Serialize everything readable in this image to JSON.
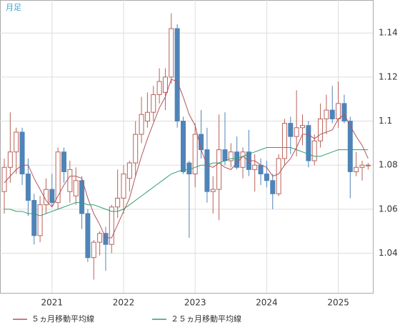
{
  "chart_data": {
    "type": "candlestick",
    "title": "月足",
    "categories": [
      null,
      null,
      null,
      null,
      null,
      null,
      null,
      null,
      "2021",
      null,
      null,
      null,
      null,
      null,
      null,
      null,
      null,
      null,
      null,
      null,
      "2022",
      null,
      null,
      null,
      null,
      null,
      null,
      null,
      null,
      null,
      null,
      null,
      "2023",
      null,
      null,
      null,
      null,
      null,
      null,
      null,
      null,
      null,
      null,
      null,
      "2024",
      null,
      null,
      null,
      null,
      null,
      null,
      null,
      null,
      null,
      null,
      null,
      "2025",
      null,
      null,
      null,
      null,
      null
    ],
    "ohlc": {
      "open": [
        1.068,
        1.079,
        1.086,
        1.095,
        1.076,
        1.064,
        1.048,
        1.062,
        1.069,
        1.063,
        1.086,
        1.068,
        1.066,
        1.073,
        1.058,
        1.038,
        1.045,
        1.049,
        1.044,
        1.061,
        1.065,
        1.074,
        1.081,
        1.094,
        1.1,
        1.104,
        1.112,
        1.113,
        1.12,
        1.142,
        1.1,
        1.081,
        1.076,
        1.094,
        1.087,
        1.068,
        1.069,
        1.087,
        1.082,
        1.086,
        1.079,
        1.086,
        1.078,
        1.08,
        1.076,
        1.073,
        1.067,
        1.083,
        1.099,
        1.093,
        1.097,
        1.098,
        1.082,
        1.091,
        1.101,
        1.105,
        1.101,
        1.108,
        1.1,
        1.077,
        1.079,
        1.08
      ],
      "high": [
        1.083,
        1.104,
        1.097,
        1.097,
        1.083,
        1.067,
        1.066,
        1.074,
        1.076,
        1.088,
        1.088,
        1.082,
        1.079,
        1.075,
        1.06,
        1.046,
        1.05,
        1.052,
        1.062,
        1.078,
        1.08,
        1.082,
        1.1,
        1.111,
        1.113,
        1.116,
        1.124,
        1.124,
        1.149,
        1.144,
        1.102,
        1.082,
        1.099,
        1.105,
        1.097,
        1.075,
        1.103,
        1.104,
        1.09,
        1.093,
        1.088,
        1.096,
        1.085,
        1.083,
        1.082,
        1.076,
        1.085,
        1.101,
        1.102,
        1.114,
        1.103,
        1.1,
        1.094,
        1.108,
        1.112,
        1.116,
        1.118,
        1.112,
        1.102,
        1.086,
        1.082,
        1.081
      ],
      "low": [
        1.058,
        1.072,
        1.076,
        1.071,
        1.057,
        1.044,
        1.045,
        1.058,
        1.061,
        1.06,
        1.072,
        1.063,
        1.062,
        1.051,
        1.036,
        1.028,
        1.039,
        1.032,
        1.04,
        1.056,
        1.058,
        1.068,
        1.075,
        1.09,
        1.097,
        1.1,
        1.108,
        1.105,
        1.117,
        1.097,
        1.076,
        1.047,
        1.07,
        1.083,
        1.063,
        1.058,
        1.055,
        1.08,
        1.079,
        1.078,
        1.074,
        1.075,
        1.068,
        1.071,
        1.07,
        1.06,
        1.066,
        1.08,
        1.085,
        1.084,
        1.089,
        1.079,
        1.08,
        1.088,
        1.094,
        1.099,
        1.097,
        1.099,
        1.065,
        1.075,
        1.073,
        1.078
      ],
      "close": [
        1.079,
        1.086,
        1.095,
        1.076,
        1.064,
        1.048,
        1.062,
        1.069,
        1.063,
        1.086,
        1.077,
        1.078,
        1.073,
        1.058,
        1.038,
        1.045,
        1.049,
        1.044,
        1.061,
        1.065,
        1.076,
        1.081,
        1.094,
        1.103,
        1.104,
        1.112,
        1.118,
        1.12,
        1.142,
        1.1,
        1.077,
        1.076,
        1.094,
        1.087,
        1.068,
        1.069,
        1.087,
        1.082,
        1.086,
        1.079,
        1.086,
        1.078,
        1.08,
        1.076,
        1.073,
        1.067,
        1.083,
        1.099,
        1.093,
        1.097,
        1.098,
        1.082,
        1.091,
        1.101,
        1.105,
        1.101,
        1.108,
        1.1,
        1.077,
        1.079,
        1.08,
        1.08
      ]
    },
    "up_color": "#b8625a",
    "down_color": "#4f84b8",
    "series": [
      {
        "name": "５ヵ月移動平均線",
        "color": "#b5535a",
        "values": [
          1.072,
          1.075,
          1.078,
          1.08,
          1.08,
          1.074,
          1.069,
          1.064,
          1.061,
          1.066,
          1.071,
          1.075,
          1.075,
          1.074,
          1.065,
          1.058,
          1.053,
          1.047,
          1.047,
          1.053,
          1.059,
          1.065,
          1.075,
          1.084,
          1.092,
          1.099,
          1.106,
          1.111,
          1.119,
          1.118,
          1.111,
          1.103,
          1.098,
          1.087,
          1.08,
          1.079,
          1.081,
          1.079,
          1.078,
          1.081,
          1.084,
          1.082,
          1.082,
          1.08,
          1.079,
          1.075,
          1.076,
          1.08,
          1.083,
          1.088,
          1.094,
          1.094,
          1.092,
          1.094,
          1.095,
          1.096,
          1.101,
          1.103,
          1.098,
          1.093,
          1.089,
          1.083
        ]
      },
      {
        "name": "２５ヵ月移動平均線",
        "color": "#2f9e72",
        "values": [
          1.06,
          1.06,
          1.059,
          1.059,
          1.058,
          1.058,
          1.057,
          1.058,
          1.059,
          1.06,
          1.061,
          1.062,
          1.063,
          1.063,
          1.062,
          1.062,
          1.061,
          1.06,
          1.059,
          1.059,
          1.06,
          1.062,
          1.064,
          1.066,
          1.068,
          1.07,
          1.072,
          1.074,
          1.076,
          1.077,
          1.078,
          1.078,
          1.079,
          1.08,
          1.08,
          1.081,
          1.081,
          1.082,
          1.083,
          1.083,
          1.084,
          1.085,
          1.086,
          1.087,
          1.088,
          1.088,
          1.088,
          1.088,
          1.088,
          1.087,
          1.086,
          1.085,
          1.084,
          1.084,
          1.085,
          1.086,
          1.087,
          1.087,
          1.087,
          1.087,
          1.087,
          1.087
        ]
      }
    ],
    "ylim": [
      1.022,
      1.155
    ],
    "yticks": [
      1.04,
      1.06,
      1.08,
      1.1,
      1.12,
      1.14
    ],
    "grid": true
  }
}
